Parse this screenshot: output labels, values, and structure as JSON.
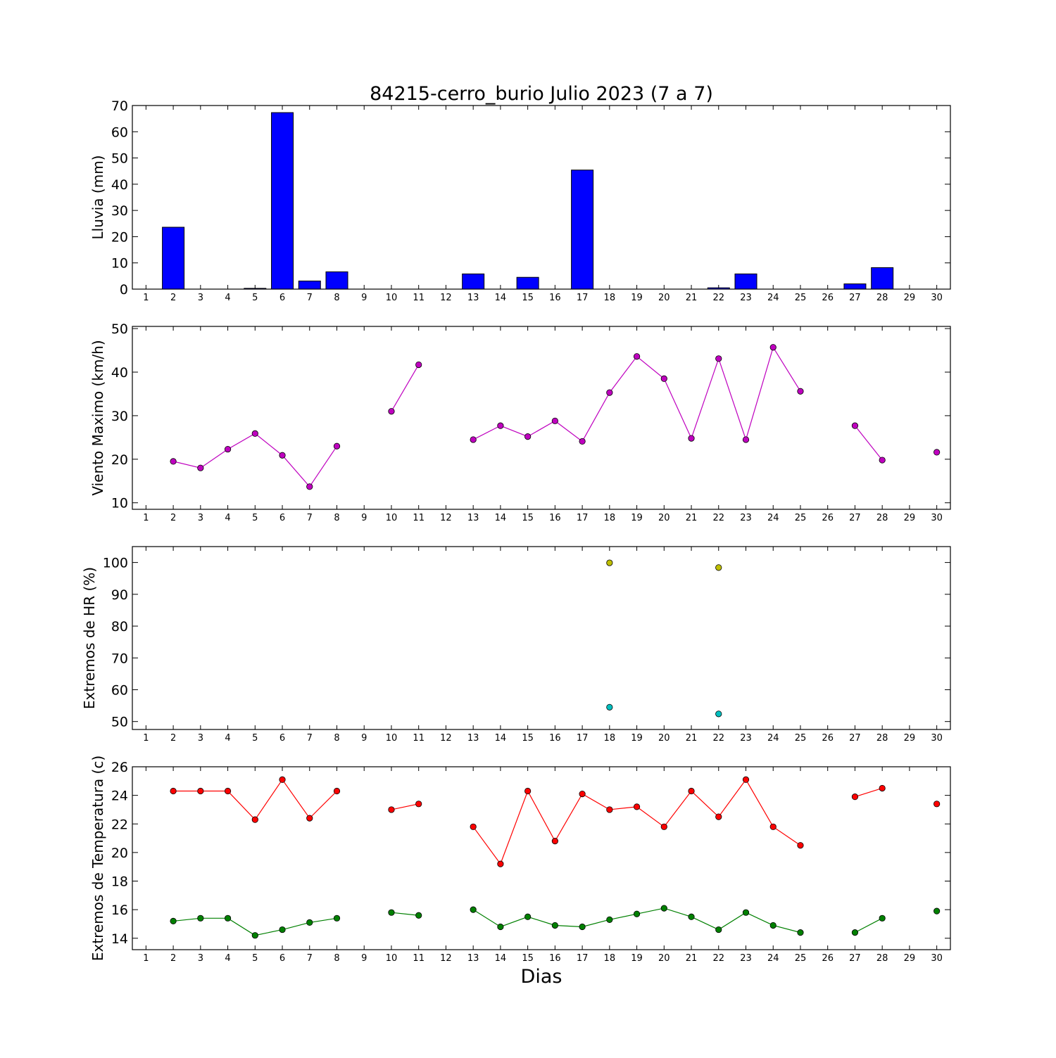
{
  "title": "84215-cerro_burio Julio 2023  (7 a 7)",
  "xlabel": "Dias",
  "days": [
    1,
    2,
    3,
    4,
    5,
    6,
    7,
    8,
    9,
    10,
    11,
    12,
    13,
    14,
    15,
    16,
    17,
    18,
    19,
    20,
    21,
    22,
    23,
    24,
    25,
    26,
    27,
    28,
    29,
    30
  ],
  "colors": {
    "rain": "#0000ff",
    "wind": "#bf00bf",
    "hr_max": "#bfbf00",
    "hr_min": "#00bfbf",
    "temp_max": "#ff0000",
    "temp_min": "#008000"
  },
  "chart_data": [
    {
      "type": "bar",
      "ylabel": "Lluvia (mm)",
      "ylim": [
        0,
        70
      ],
      "yticks": [
        0,
        10,
        20,
        30,
        40,
        50,
        60,
        70
      ],
      "x": [
        1,
        2,
        3,
        4,
        5,
        6,
        7,
        8,
        9,
        10,
        11,
        12,
        13,
        14,
        15,
        16,
        17,
        18,
        19,
        20,
        21,
        22,
        23,
        24,
        25,
        26,
        27,
        28,
        29,
        30
      ],
      "values": [
        0,
        23.6,
        0,
        0,
        0.3,
        67.3,
        3.1,
        6.6,
        0,
        0,
        0,
        0,
        5.8,
        0,
        4.5,
        0,
        45.4,
        0,
        0,
        0,
        0,
        0.5,
        5.8,
        0,
        0,
        0,
        2.0,
        8.2,
        0,
        0
      ]
    },
    {
      "type": "line",
      "ylabel": "Viento Maximo (km/h)",
      "ylim": [
        8.5,
        50.5
      ],
      "yticks": [
        10,
        20,
        30,
        40,
        50
      ],
      "series": [
        {
          "x": [
            1,
            2,
            3,
            4,
            5,
            6,
            7,
            8,
            9,
            10,
            11,
            12,
            13,
            14,
            15,
            16,
            17,
            18,
            19,
            20,
            21,
            22,
            23,
            24,
            25,
            26,
            27,
            28,
            29,
            30
          ],
          "values": [
            null,
            19.5,
            18.0,
            22.3,
            25.9,
            20.9,
            13.7,
            23.0,
            null,
            31.0,
            41.7,
            null,
            24.5,
            27.7,
            25.2,
            28.8,
            24.1,
            35.3,
            43.6,
            38.5,
            24.8,
            43.1,
            24.5,
            45.7,
            35.6,
            null,
            27.7,
            19.8,
            null,
            21.6
          ]
        }
      ]
    },
    {
      "type": "scatter",
      "ylabel": "Extremos de HR (%)",
      "ylim": [
        47.5,
        105
      ],
      "yticks": [
        50,
        60,
        70,
        80,
        90,
        100
      ],
      "series": [
        {
          "x": [
            18,
            22
          ],
          "values": [
            99.9,
            98.4
          ]
        },
        {
          "x": [
            18,
            22
          ],
          "values": [
            54.5,
            52.4
          ]
        }
      ]
    },
    {
      "type": "line",
      "ylabel": "Extremos de Temperatura (c)",
      "ylim": [
        13.2,
        26
      ],
      "yticks": [
        14,
        16,
        18,
        20,
        22,
        24,
        26
      ],
      "series": [
        {
          "x": [
            1,
            2,
            3,
            4,
            5,
            6,
            7,
            8,
            9,
            10,
            11,
            12,
            13,
            14,
            15,
            16,
            17,
            18,
            19,
            20,
            21,
            22,
            23,
            24,
            25,
            26,
            27,
            28,
            29,
            30
          ],
          "values": [
            null,
            24.3,
            24.3,
            24.3,
            22.3,
            25.1,
            22.4,
            24.3,
            null,
            23.0,
            23.4,
            null,
            21.8,
            19.2,
            24.3,
            20.8,
            24.1,
            23.0,
            23.2,
            21.8,
            24.3,
            22.5,
            25.1,
            21.8,
            20.5,
            null,
            23.9,
            24.5,
            null,
            23.4
          ]
        },
        {
          "x": [
            1,
            2,
            3,
            4,
            5,
            6,
            7,
            8,
            9,
            10,
            11,
            12,
            13,
            14,
            15,
            16,
            17,
            18,
            19,
            20,
            21,
            22,
            23,
            24,
            25,
            26,
            27,
            28,
            29,
            30
          ],
          "values": [
            null,
            15.2,
            15.4,
            15.4,
            14.2,
            14.6,
            15.1,
            15.4,
            null,
            15.8,
            15.6,
            null,
            16.0,
            14.8,
            15.5,
            14.9,
            14.8,
            15.3,
            15.7,
            16.1,
            15.5,
            14.6,
            15.8,
            14.9,
            14.4,
            null,
            14.4,
            15.4,
            null,
            15.9
          ]
        }
      ]
    }
  ]
}
